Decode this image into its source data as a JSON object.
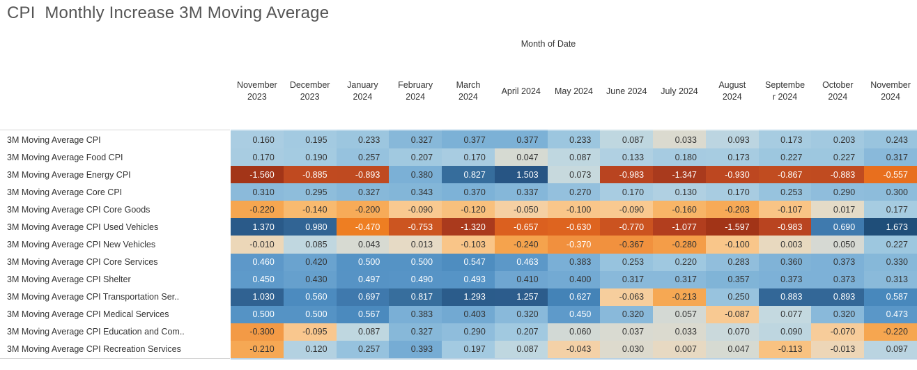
{
  "axis": {
    "top_label": "Month of Date"
  },
  "colors": {
    "background": "#ffffff",
    "title_text": "#555555",
    "header_text": "#333333",
    "row_label_text": "#333333",
    "cell_text_dark": "#333333",
    "cell_text_light": "#ffffff",
    "clipped_row_blue": "#b9d1e3",
    "hairline_gray": "#d6d6d6"
  },
  "chart_data": {
    "type": "heatmap",
    "title": "CPI  Monthly Increase 3M Moving Average",
    "xlabel": "Month of Date",
    "ylabel": "",
    "legend": "none",
    "columns": [
      {
        "label": "November 2023",
        "lines": [
          "November",
          "2023"
        ]
      },
      {
        "label": "December 2023",
        "lines": [
          "December",
          "2023"
        ]
      },
      {
        "label": "January 2024",
        "lines": [
          "January",
          "2024"
        ]
      },
      {
        "label": "February 2024",
        "lines": [
          "February",
          "2024"
        ]
      },
      {
        "label": "March 2024",
        "lines": [
          "March",
          "2024"
        ]
      },
      {
        "label": "April 2024",
        "lines": [
          "April 2024"
        ]
      },
      {
        "label": "May 2024",
        "lines": [
          "May 2024"
        ]
      },
      {
        "label": "June 2024",
        "lines": [
          "June 2024"
        ]
      },
      {
        "label": "July 2024",
        "lines": [
          "July 2024"
        ]
      },
      {
        "label": "August 2024",
        "lines": [
          "August",
          "2024"
        ]
      },
      {
        "label": "September 2024",
        "lines": [
          "Septembe",
          "r 2024"
        ]
      },
      {
        "label": "October 2024",
        "lines": [
          "October",
          "2024"
        ]
      },
      {
        "label": "November 2024",
        "lines": [
          "November",
          "2024"
        ]
      }
    ],
    "rows": [
      {
        "label": "3M Moving Average CPI",
        "values": [
          0.16,
          0.195,
          0.233,
          0.327,
          0.377,
          0.377,
          0.233,
          0.087,
          0.033,
          0.093,
          0.173,
          0.203,
          0.243
        ]
      },
      {
        "label": "3M Moving Average Food CPI",
        "values": [
          0.17,
          0.19,
          0.257,
          0.207,
          0.17,
          0.047,
          0.087,
          0.133,
          0.18,
          0.173,
          0.227,
          0.227,
          0.317
        ]
      },
      {
        "label": "3M Moving Average Energy CPI",
        "values": [
          -1.56,
          -0.885,
          -0.893,
          0.38,
          0.827,
          1.503,
          0.073,
          -0.983,
          -1.347,
          -0.93,
          -0.867,
          -0.883,
          -0.557
        ]
      },
      {
        "label": "3M Moving Average Core CPI",
        "values": [
          0.31,
          0.295,
          0.327,
          0.343,
          0.37,
          0.337,
          0.27,
          0.17,
          0.13,
          0.17,
          0.253,
          0.29,
          0.3
        ]
      },
      {
        "label": "3M Moving Average CPI Core Goods",
        "values": [
          -0.22,
          -0.14,
          -0.2,
          -0.09,
          -0.12,
          -0.05,
          -0.1,
          -0.09,
          -0.16,
          -0.203,
          -0.107,
          0.017,
          0.177
        ]
      },
      {
        "label": "3M Moving Average CPI Used Vehicles",
        "values": [
          1.37,
          0.98,
          -0.47,
          -0.753,
          -1.32,
          -0.657,
          -0.63,
          -0.77,
          -1.077,
          -1.597,
          -0.983,
          0.69,
          1.673
        ]
      },
      {
        "label": "3M Moving Average CPI New Vehicles",
        "values": [
          -0.01,
          0.085,
          0.043,
          0.013,
          -0.103,
          -0.24,
          -0.37,
          -0.367,
          -0.28,
          -0.1,
          0.003,
          0.05,
          0.227
        ]
      },
      {
        "label": "3M Moving Average CPI Core Services",
        "values": [
          0.46,
          0.42,
          0.5,
          0.5,
          0.547,
          0.463,
          0.383,
          0.253,
          0.22,
          0.283,
          0.36,
          0.373,
          0.33
        ]
      },
      {
        "label": "3M Moving Average CPI Shelter",
        "values": [
          0.45,
          0.43,
          0.497,
          0.49,
          0.493,
          0.41,
          0.4,
          0.317,
          0.317,
          0.357,
          0.373,
          0.373,
          0.313
        ]
      },
      {
        "label": "3M Moving Average CPI Transportation Ser..",
        "values": [
          1.03,
          0.56,
          0.697,
          0.817,
          1.293,
          1.257,
          0.627,
          -0.063,
          -0.213,
          0.25,
          0.883,
          0.893,
          0.587
        ]
      },
      {
        "label": "3M Moving Average CPI Medical Services",
        "values": [
          0.5,
          0.5,
          0.567,
          0.383,
          0.403,
          0.32,
          0.45,
          0.32,
          0.057,
          -0.087,
          0.077,
          0.32,
          0.473
        ]
      },
      {
        "label": "3M Moving Average CPI Education and Com..",
        "values": [
          -0.3,
          -0.095,
          0.087,
          0.327,
          0.29,
          0.207,
          0.06,
          0.037,
          0.033,
          0.07,
          0.09,
          -0.07,
          -0.22
        ]
      },
      {
        "label": "3M Moving Average CPI Recreation Services",
        "values": [
          -0.21,
          0.12,
          0.257,
          0.393,
          0.197,
          0.087,
          -0.043,
          0.03,
          0.007,
          0.047,
          -0.113,
          -0.013,
          0.097
        ]
      }
    ],
    "value_format": "0.000",
    "color_scale": {
      "type": "diverging-orange-blue",
      "domain": [
        -1.597,
        1.673
      ],
      "white_text_pos_threshold": 0.45,
      "white_text_neg_threshold": -0.368,
      "stops": [
        [
          0.0,
          "#a23417"
        ],
        [
          0.08,
          "#a93a1d"
        ],
        [
          0.16,
          "#b23e1e"
        ],
        [
          0.19,
          "#ba4420"
        ],
        [
          0.22,
          "#c04b20"
        ],
        [
          0.26,
          "#cd5520"
        ],
        [
          0.29,
          "#dc611f"
        ],
        [
          0.32,
          "#e9701e"
        ],
        [
          0.345,
          "#ee7e22"
        ],
        [
          0.375,
          "#f1903e"
        ],
        [
          0.42,
          "#f6a54f"
        ],
        [
          0.445,
          "#f8b96e"
        ],
        [
          0.46,
          "#f9c88f"
        ],
        [
          0.478,
          "#f3d3ab"
        ],
        [
          0.494,
          "#e4dbc8"
        ],
        [
          0.5,
          "#d8dad1"
        ],
        [
          0.506,
          "#d4d9d4"
        ],
        [
          0.512,
          "#c4d9e0"
        ],
        [
          0.52,
          "#b7d3e1"
        ],
        [
          0.535,
          "#abcee2"
        ],
        [
          0.555,
          "#9fc8e0"
        ],
        [
          0.58,
          "#8dbcdb"
        ],
        [
          0.605,
          "#7bb0d6"
        ],
        [
          0.625,
          "#5f9aca"
        ],
        [
          0.648,
          "#5190c3"
        ],
        [
          0.67,
          "#4787bb"
        ],
        [
          0.7,
          "#3f7aae"
        ],
        [
          0.73,
          "#38709f"
        ],
        [
          0.76,
          "#336797"
        ],
        [
          0.82,
          "#2f6090"
        ],
        [
          0.92,
          "#295988"
        ],
        [
          0.96,
          "#265483"
        ],
        [
          1.0,
          "#1f4e79"
        ]
      ]
    }
  }
}
